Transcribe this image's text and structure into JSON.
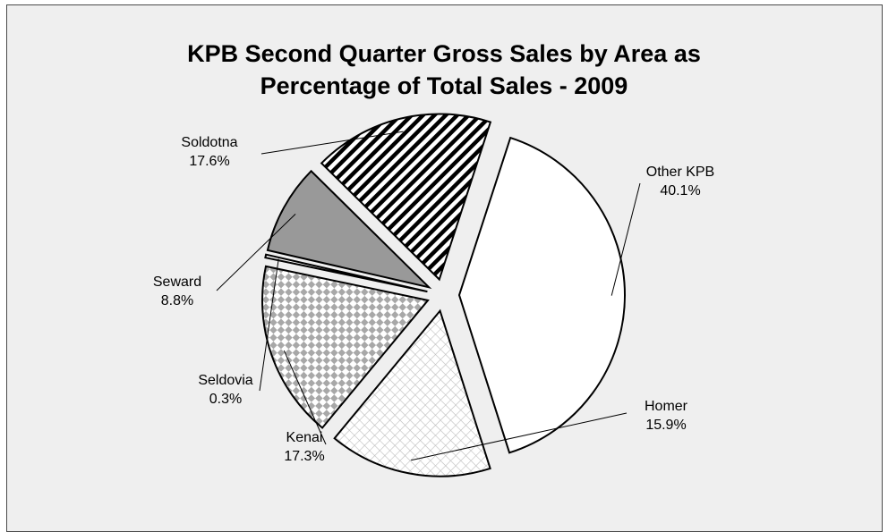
{
  "chart_data": {
    "type": "pie",
    "title_line1": "KPB Second Quarter Gross Sales by Area as",
    "title_line2": "Percentage of Total Sales - 2009",
    "slices": [
      {
        "name": "Other KPB",
        "value": 40.1,
        "value_label": "40.1%",
        "fill": "white"
      },
      {
        "name": "Homer",
        "value": 15.9,
        "value_label": "15.9%",
        "fill": "crosshatch-light"
      },
      {
        "name": "Kenai",
        "value": 17.3,
        "value_label": "17.3%",
        "fill": "checker"
      },
      {
        "name": "Seldovia",
        "value": 0.3,
        "value_label": "0.3%",
        "fill": "white"
      },
      {
        "name": "Seward",
        "value": 8.8,
        "value_label": "8.8%",
        "fill": "gray"
      },
      {
        "name": "Soldotna",
        "value": 17.6,
        "value_label": "17.6%",
        "fill": "diagonal-stripes"
      }
    ]
  },
  "colors": {
    "background": "#efefef",
    "border": "#4a4a4a",
    "seward_fill": "#999999"
  }
}
